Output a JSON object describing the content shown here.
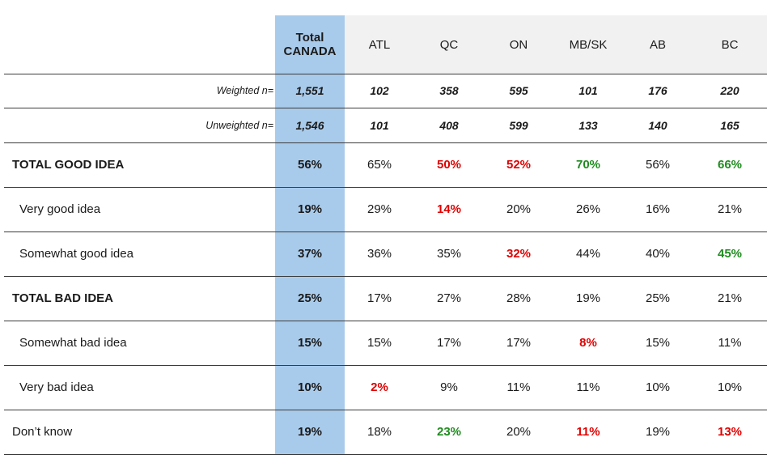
{
  "chart_data": {
    "type": "table",
    "columns": [
      "Total CANADA",
      "ATL",
      "QC",
      "ON",
      "MB/SK",
      "AB",
      "BC"
    ],
    "header_total_lines": [
      "Total",
      "CANADA"
    ],
    "n_rows": [
      {
        "label": "Weighted n=",
        "values": [
          "1,551",
          "102",
          "358",
          "595",
          "101",
          "176",
          "220"
        ]
      },
      {
        "label": "Unweighted n=",
        "values": [
          "1,546",
          "101",
          "408",
          "599",
          "133",
          "140",
          "165"
        ]
      }
    ],
    "rows": [
      {
        "label": "TOTAL GOOD IDEA",
        "style": "total",
        "values": [
          "56%",
          "65%",
          "50%",
          "52%",
          "70%",
          "56%",
          "66%"
        ],
        "highlight": [
          "",
          "",
          "red",
          "red",
          "green",
          "",
          "green"
        ]
      },
      {
        "label": "Very good idea",
        "style": "sub",
        "values": [
          "19%",
          "29%",
          "14%",
          "20%",
          "26%",
          "16%",
          "21%"
        ],
        "highlight": [
          "",
          "",
          "red",
          "",
          "",
          "",
          ""
        ]
      },
      {
        "label": "Somewhat good idea",
        "style": "sub",
        "values": [
          "37%",
          "36%",
          "35%",
          "32%",
          "44%",
          "40%",
          "45%"
        ],
        "highlight": [
          "",
          "",
          "",
          "red",
          "",
          "",
          "green"
        ]
      },
      {
        "label": "TOTAL BAD IDEA",
        "style": "total",
        "values": [
          "25%",
          "17%",
          "27%",
          "28%",
          "19%",
          "25%",
          "21%"
        ],
        "highlight": [
          "",
          "",
          "",
          "",
          "",
          "",
          ""
        ]
      },
      {
        "label": "Somewhat bad idea",
        "style": "sub",
        "values": [
          "15%",
          "15%",
          "17%",
          "17%",
          "8%",
          "15%",
          "11%"
        ],
        "highlight": [
          "",
          "",
          "",
          "",
          "red",
          "",
          ""
        ]
      },
      {
        "label": "Very bad idea",
        "style": "sub",
        "values": [
          "10%",
          "2%",
          "9%",
          "11%",
          "11%",
          "10%",
          "10%"
        ],
        "highlight": [
          "",
          "red",
          "",
          "",
          "",
          "",
          ""
        ]
      },
      {
        "label": "Don’t know",
        "style": "plain",
        "values": [
          "19%",
          "18%",
          "23%",
          "20%",
          "11%",
          "19%",
          "13%"
        ],
        "highlight": [
          "",
          "",
          "green",
          "",
          "red",
          "",
          "red"
        ]
      }
    ],
    "colors": {
      "total_column": "#a9cbeb",
      "header_shade": "#f1f1f1",
      "significant_high": "#1e8c1e",
      "significant_low": "#e00000"
    }
  }
}
